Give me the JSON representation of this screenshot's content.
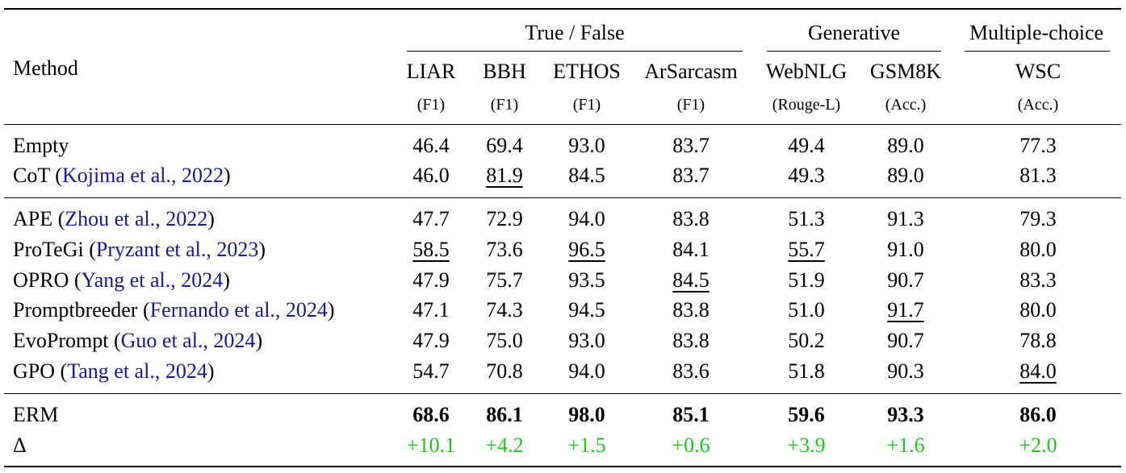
{
  "header": {
    "method_label": "Method",
    "groups": [
      "True / False",
      "Generative",
      "Multiple-choice"
    ],
    "datasets": [
      "LIAR",
      "BBH",
      "ETHOS",
      "ArSarcasm",
      "WebNLG",
      "GSM8K",
      "WSC"
    ],
    "metrics": [
      "(F1)",
      "(F1)",
      "(F1)",
      "(F1)",
      "(Rouge-L)",
      "(Acc.)",
      "(Acc.)"
    ]
  },
  "rows": [
    {
      "name": "Empty",
      "cite": "",
      "values": [
        "46.4",
        "69.4",
        "93.0",
        "83.7",
        "49.4",
        "89.0",
        "77.3"
      ],
      "underline": []
    },
    {
      "name": "CoT",
      "cite": "Kojima et al., 2022",
      "values": [
        "46.0",
        "81.9",
        "84.5",
        "83.7",
        "49.3",
        "89.0",
        "81.3"
      ],
      "underline": [
        1
      ]
    },
    {
      "name": "APE",
      "cite": "Zhou et al., 2022",
      "values": [
        "47.7",
        "72.9",
        "94.0",
        "83.8",
        "51.3",
        "91.3",
        "79.3"
      ],
      "underline": []
    },
    {
      "name": "ProTeGi",
      "cite": "Pryzant et al., 2023",
      "values": [
        "58.5",
        "73.6",
        "96.5",
        "84.1",
        "55.7",
        "91.0",
        "80.0"
      ],
      "underline": [
        0,
        2,
        4
      ]
    },
    {
      "name": "OPRO",
      "cite": "Yang et al., 2024",
      "values": [
        "47.9",
        "75.7",
        "93.5",
        "84.5",
        "51.9",
        "90.7",
        "83.3"
      ],
      "underline": [
        3
      ]
    },
    {
      "name": "Promptbreeder",
      "cite": "Fernando et al., 2024",
      "values": [
        "47.1",
        "74.3",
        "94.5",
        "83.8",
        "51.0",
        "91.7",
        "80.0"
      ],
      "underline": [
        5
      ]
    },
    {
      "name": "EvoPrompt",
      "cite": "Guo et al., 2024",
      "values": [
        "47.9",
        "75.0",
        "93.0",
        "83.8",
        "50.2",
        "90.7",
        "78.8"
      ],
      "underline": []
    },
    {
      "name": "GPO",
      "cite": "Tang et al., 2024",
      "values": [
        "54.7",
        "70.8",
        "94.0",
        "83.6",
        "51.8",
        "90.3",
        "84.0"
      ],
      "underline": [
        6
      ]
    },
    {
      "name": "ERM",
      "cite": "",
      "values": [
        "68.6",
        "86.1",
        "98.0",
        "85.1",
        "59.6",
        "93.3",
        "86.0"
      ],
      "underline": [],
      "bold": true
    },
    {
      "name": "Δ",
      "cite": "",
      "values": [
        "+10.1",
        "+4.2",
        "+1.5",
        "+0.6",
        "+3.9",
        "+1.6",
        "+2.0"
      ],
      "underline": [],
      "delta": true
    }
  ],
  "colors": {
    "citation": "#1a1a80",
    "delta": "#22c322",
    "text": "#000000"
  }
}
